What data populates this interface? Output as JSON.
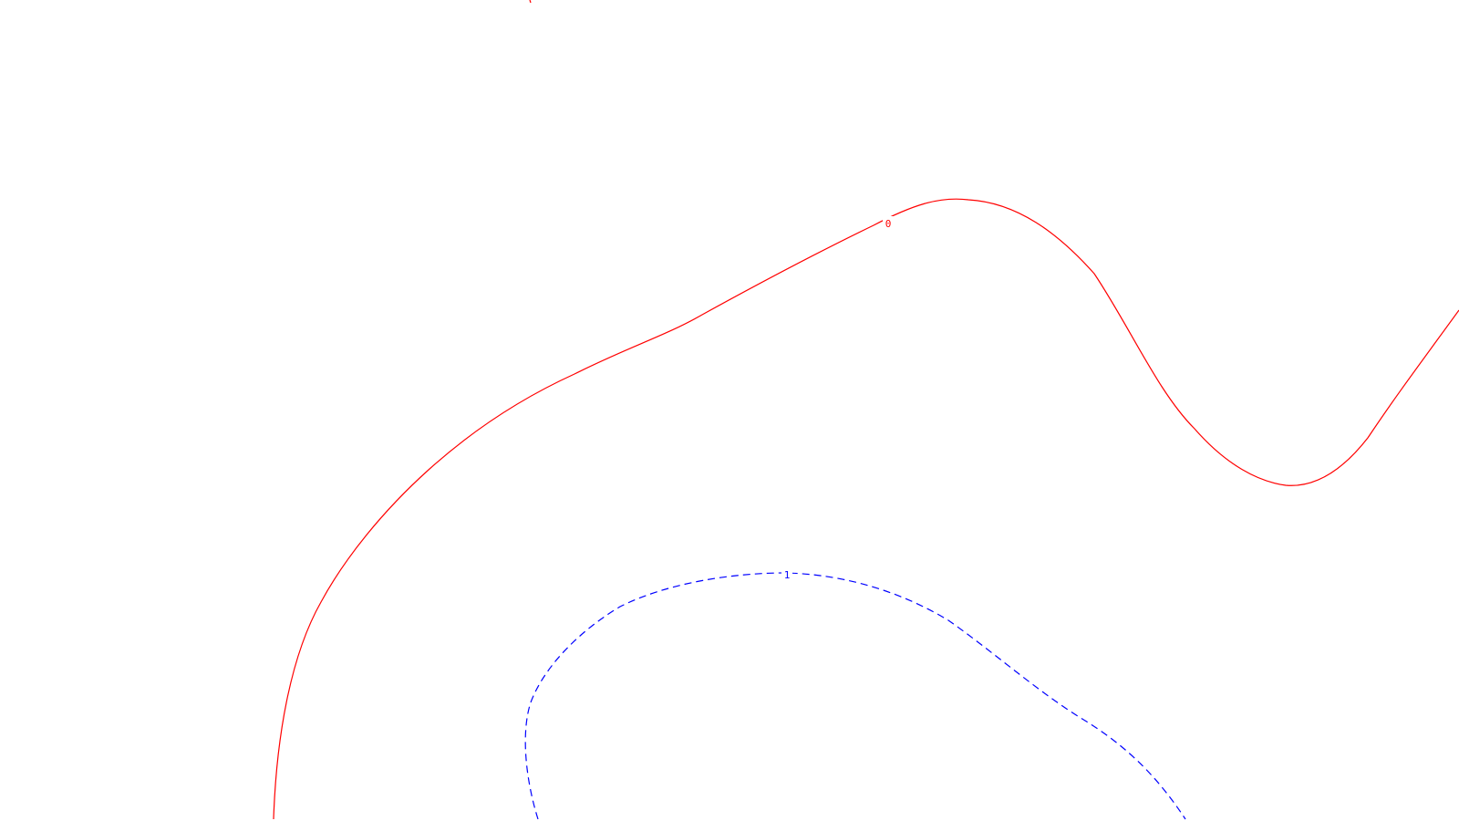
{
  "contours": [
    {
      "id": "contour-0",
      "level_label": "0",
      "color": "#ff0000",
      "line_style": "solid"
    },
    {
      "id": "contour-1",
      "level_label": "1",
      "color": "#0000ff",
      "line_style": "dashed"
    },
    {
      "id": "contour-top-partial",
      "level_label": "",
      "color": "#ff0000",
      "line_style": "solid"
    }
  ]
}
